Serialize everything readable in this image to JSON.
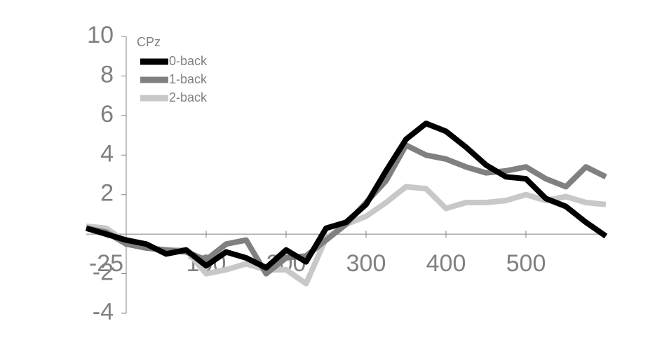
{
  "chart_data": {
    "type": "line",
    "legend_title": "CPz",
    "x": [
      -50,
      -25,
      0,
      25,
      50,
      75,
      100,
      125,
      150,
      175,
      200,
      225,
      250,
      275,
      300,
      325,
      350,
      375,
      400,
      425,
      450,
      475,
      500,
      525,
      550,
      575,
      600
    ],
    "series": [
      {
        "name": "0-back",
        "color": "#000000",
        "values": [
          0.3,
          0,
          -0.3,
          -0.5,
          -1.0,
          -0.8,
          -1.6,
          -0.9,
          -1.2,
          -1.7,
          -0.8,
          -1.4,
          0.3,
          0.6,
          1.5,
          3.2,
          4.8,
          5.6,
          5.2,
          4.4,
          3.5,
          2.9,
          2.8,
          1.8,
          1.4,
          0.6,
          -0.1
        ]
      },
      {
        "name": "1-back",
        "color": "#808080",
        "values": [
          0.3,
          0.1,
          -0.5,
          -0.7,
          -0.8,
          -0.9,
          -1.3,
          -0.5,
          -0.3,
          -2.0,
          -1.2,
          -1.1,
          -0.3,
          0.5,
          1.6,
          2.7,
          4.5,
          4.0,
          3.8,
          3.4,
          3.1,
          3.2,
          3.4,
          2.8,
          2.4,
          3.4,
          2.9
        ]
      },
      {
        "name": "2-back",
        "color": "#c8c8c8",
        "values": [
          0.4,
          0.3,
          -0.4,
          -0.7,
          -0.8,
          -0.8,
          -2.0,
          -1.8,
          -1.5,
          -1.8,
          -1.8,
          -2.5,
          -0.2,
          0.5,
          0.9,
          1.6,
          2.4,
          2.3,
          1.3,
          1.6,
          1.6,
          1.7,
          2.0,
          1.7,
          1.9,
          1.6,
          1.5
        ]
      }
    ],
    "xlim": [
      -50,
      600
    ],
    "xticks": [
      -25,
      100,
      200,
      300,
      400,
      500
    ],
    "ylim": [
      -4,
      10
    ],
    "yticks": [
      -4,
      -2,
      2,
      4,
      6,
      8,
      10
    ],
    "legend_position": "upper left"
  }
}
